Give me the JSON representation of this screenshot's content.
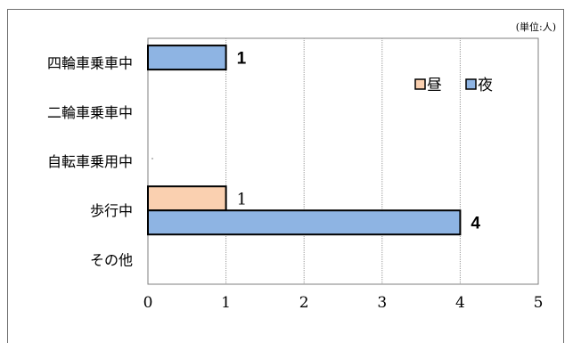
{
  "chart_data": {
    "type": "bar",
    "orientation": "horizontal",
    "unit_note": "(単位:人)",
    "categories": [
      "四輪車乗車中",
      "二輪車乗車中",
      "自転車乗用中",
      "歩行中",
      "その他"
    ],
    "series": [
      {
        "name": "昼",
        "values": [
          null,
          null,
          null,
          1,
          null
        ],
        "color": "#FAD0B0"
      },
      {
        "name": "夜",
        "values": [
          1,
          null,
          null,
          4,
          null
        ],
        "color": "#8EB4E3"
      }
    ],
    "data_labels": [
      {
        "category": "四輪車乗車中",
        "series": "夜",
        "text": "1"
      },
      {
        "category": "歩行中",
        "series": "昼",
        "text": "1"
      },
      {
        "category": "歩行中",
        "series": "夜",
        "text": "4"
      }
    ],
    "xlim": [
      0,
      5
    ],
    "xticks": [
      "0",
      "1",
      "2",
      "3",
      "4",
      "5"
    ],
    "grid": true,
    "legend_position": "right",
    "bar_border_color": "#000000"
  }
}
